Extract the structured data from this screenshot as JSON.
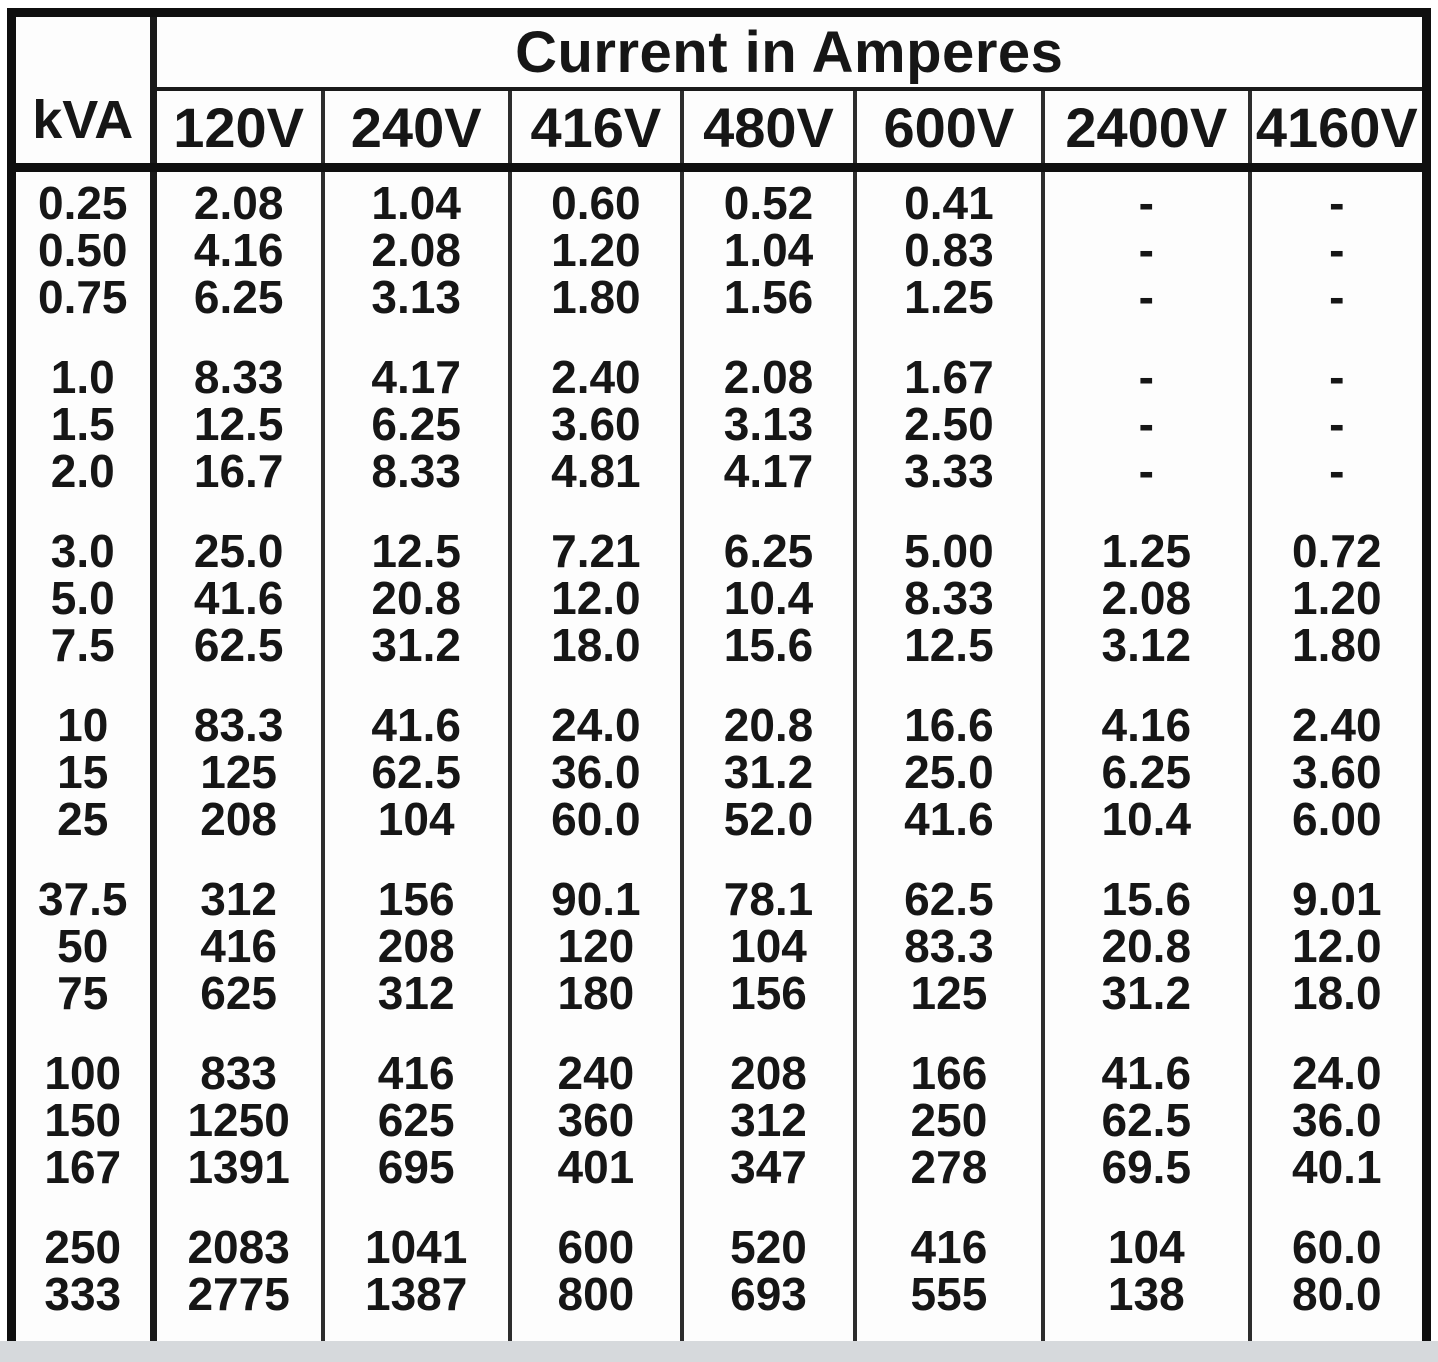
{
  "colors": {
    "border": "#0f0f0f",
    "text": "#161616",
    "table_background": "#fdfdfd",
    "page_bottom_strip": "#d6d9dc"
  },
  "table": {
    "title": "Current in Amperes",
    "row_header_label": "kVA",
    "voltage_columns": [
      "120V",
      "240V",
      "416V",
      "480V",
      "600V",
      "2400V",
      "4160V"
    ],
    "groups": [
      {
        "rows": [
          {
            "kva": "0.25",
            "values": [
              "2.08",
              "1.04",
              "0.60",
              "0.52",
              "0.41",
              "-",
              "-"
            ]
          },
          {
            "kva": "0.50",
            "values": [
              "4.16",
              "2.08",
              "1.20",
              "1.04",
              "0.83",
              "-",
              "-"
            ]
          },
          {
            "kva": "0.75",
            "values": [
              "6.25",
              "3.13",
              "1.80",
              "1.56",
              "1.25",
              "-",
              "-"
            ]
          }
        ]
      },
      {
        "rows": [
          {
            "kva": "1.0",
            "values": [
              "8.33",
              "4.17",
              "2.40",
              "2.08",
              "1.67",
              "-",
              "-"
            ]
          },
          {
            "kva": "1.5",
            "values": [
              "12.5",
              "6.25",
              "3.60",
              "3.13",
              "2.50",
              "-",
              "-"
            ]
          },
          {
            "kva": "2.0",
            "values": [
              "16.7",
              "8.33",
              "4.81",
              "4.17",
              "3.33",
              "-",
              "-"
            ]
          }
        ]
      },
      {
        "rows": [
          {
            "kva": "3.0",
            "values": [
              "25.0",
              "12.5",
              "7.21",
              "6.25",
              "5.00",
              "1.25",
              "0.72"
            ]
          },
          {
            "kva": "5.0",
            "values": [
              "41.6",
              "20.8",
              "12.0",
              "10.4",
              "8.33",
              "2.08",
              "1.20"
            ]
          },
          {
            "kva": "7.5",
            "values": [
              "62.5",
              "31.2",
              "18.0",
              "15.6",
              "12.5",
              "3.12",
              "1.80"
            ]
          }
        ]
      },
      {
        "rows": [
          {
            "kva": "10",
            "values": [
              "83.3",
              "41.6",
              "24.0",
              "20.8",
              "16.6",
              "4.16",
              "2.40"
            ]
          },
          {
            "kva": "15",
            "values": [
              "125",
              "62.5",
              "36.0",
              "31.2",
              "25.0",
              "6.25",
              "3.60"
            ]
          },
          {
            "kva": "25",
            "values": [
              "208",
              "104",
              "60.0",
              "52.0",
              "41.6",
              "10.4",
              "6.00"
            ]
          }
        ]
      },
      {
        "rows": [
          {
            "kva": "37.5",
            "values": [
              "312",
              "156",
              "90.1",
              "78.1",
              "62.5",
              "15.6",
              "9.01"
            ]
          },
          {
            "kva": "50",
            "values": [
              "416",
              "208",
              "120",
              "104",
              "83.3",
              "20.8",
              "12.0"
            ]
          },
          {
            "kva": "75",
            "values": [
              "625",
              "312",
              "180",
              "156",
              "125",
              "31.2",
              "18.0"
            ]
          }
        ]
      },
      {
        "rows": [
          {
            "kva": "100",
            "values": [
              "833",
              "416",
              "240",
              "208",
              "166",
              "41.6",
              "24.0"
            ]
          },
          {
            "kva": "150",
            "values": [
              "1250",
              "625",
              "360",
              "312",
              "250",
              "62.5",
              "36.0"
            ]
          },
          {
            "kva": "167",
            "values": [
              "1391",
              "695",
              "401",
              "347",
              "278",
              "69.5",
              "40.1"
            ]
          }
        ]
      },
      {
        "rows": [
          {
            "kva": "250",
            "values": [
              "2083",
              "1041",
              "600",
              "520",
              "416",
              "104",
              "60.0"
            ]
          },
          {
            "kva": "333",
            "values": [
              "2775",
              "1387",
              "800",
              "693",
              "555",
              "138",
              "80.0"
            ]
          }
        ]
      }
    ]
  }
}
